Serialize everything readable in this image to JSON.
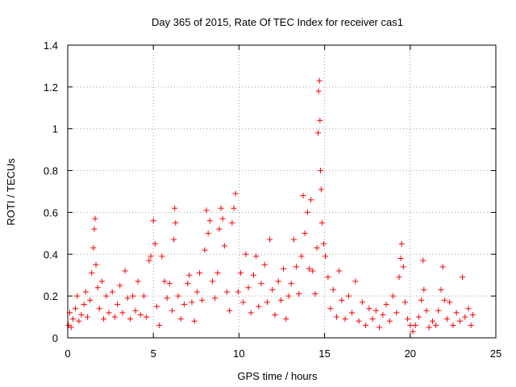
{
  "chart_data": {
    "type": "scatter",
    "title": "Day 365 of 2015, Rate Of TEC Index for receiver cas1",
    "xlabel": "GPS time / hours",
    "ylabel": "ROTI / TECUs",
    "xlim": [
      0,
      25
    ],
    "ylim": [
      0,
      1.4
    ],
    "xticks": [
      0,
      5,
      10,
      15,
      20,
      25
    ],
    "yticks": [
      0,
      0.2,
      0.4,
      0.6,
      0.8,
      1,
      1.2,
      1.4
    ],
    "xtick_labels": [
      "0",
      "5",
      "10",
      "15",
      "20",
      "25"
    ],
    "ytick_labels": [
      "0",
      "0.2",
      "0.4",
      "0.6",
      "0.8",
      "1",
      "1.2",
      "1.4"
    ],
    "grid": true,
    "marker": "+",
    "color": "#ff0000",
    "series": [
      {
        "name": "ROTI",
        "points": [
          [
            0.05,
            0.06
          ],
          [
            0.12,
            0.12
          ],
          [
            0.2,
            0.05
          ],
          [
            0.3,
            0.09
          ],
          [
            0.45,
            0.14
          ],
          [
            0.55,
            0.2
          ],
          [
            0.65,
            0.08
          ],
          [
            0.8,
            0.11
          ],
          [
            0.95,
            0.16
          ],
          [
            1.05,
            0.22
          ],
          [
            1.15,
            0.1
          ],
          [
            1.3,
            0.18
          ],
          [
            1.4,
            0.31
          ],
          [
            1.5,
            0.43
          ],
          [
            1.55,
            0.52
          ],
          [
            1.6,
            0.57
          ],
          [
            1.65,
            0.35
          ],
          [
            1.75,
            0.24
          ],
          [
            1.85,
            0.14
          ],
          [
            2.0,
            0.27
          ],
          [
            2.1,
            0.09
          ],
          [
            2.25,
            0.2
          ],
          [
            2.4,
            0.12
          ],
          [
            2.6,
            0.22
          ],
          [
            2.75,
            0.1
          ],
          [
            2.9,
            0.16
          ],
          [
            3.05,
            0.25
          ],
          [
            3.2,
            0.12
          ],
          [
            3.35,
            0.32
          ],
          [
            3.5,
            0.19
          ],
          [
            3.65,
            0.09
          ],
          [
            3.8,
            0.2
          ],
          [
            3.95,
            0.13
          ],
          [
            4.1,
            0.27
          ],
          [
            4.25,
            0.11
          ],
          [
            4.45,
            0.2
          ],
          [
            4.6,
            0.1
          ],
          [
            4.75,
            0.37
          ],
          [
            4.85,
            0.39
          ],
          [
            5.0,
            0.56
          ],
          [
            5.1,
            0.45
          ],
          [
            5.2,
            0.15
          ],
          [
            5.35,
            0.06
          ],
          [
            5.5,
            0.39
          ],
          [
            5.65,
            0.27
          ],
          [
            5.8,
            0.19
          ],
          [
            5.95,
            0.26
          ],
          [
            6.1,
            0.13
          ],
          [
            6.2,
            0.47
          ],
          [
            6.25,
            0.62
          ],
          [
            6.3,
            0.55
          ],
          [
            6.45,
            0.2
          ],
          [
            6.6,
            0.09
          ],
          [
            6.8,
            0.16
          ],
          [
            7.0,
            0.26
          ],
          [
            7.1,
            0.3
          ],
          [
            7.25,
            0.17
          ],
          [
            7.4,
            0.08
          ],
          [
            7.55,
            0.22
          ],
          [
            7.7,
            0.31
          ],
          [
            7.85,
            0.18
          ],
          [
            8.0,
            0.42
          ],
          [
            8.1,
            0.61
          ],
          [
            8.2,
            0.5
          ],
          [
            8.3,
            0.56
          ],
          [
            8.45,
            0.27
          ],
          [
            8.6,
            0.19
          ],
          [
            8.75,
            0.31
          ],
          [
            8.85,
            0.52
          ],
          [
            8.95,
            0.62
          ],
          [
            9.05,
            0.57
          ],
          [
            9.15,
            0.44
          ],
          [
            9.3,
            0.22
          ],
          [
            9.45,
            0.13
          ],
          [
            9.6,
            0.55
          ],
          [
            9.7,
            0.62
          ],
          [
            9.8,
            0.69
          ],
          [
            9.95,
            0.22
          ],
          [
            10.1,
            0.31
          ],
          [
            10.25,
            0.17
          ],
          [
            10.4,
            0.4
          ],
          [
            10.55,
            0.24
          ],
          [
            10.7,
            0.12
          ],
          [
            10.85,
            0.3
          ],
          [
            11.0,
            0.39
          ],
          [
            11.15,
            0.15
          ],
          [
            11.3,
            0.26
          ],
          [
            11.5,
            0.35
          ],
          [
            11.65,
            0.17
          ],
          [
            11.8,
            0.47
          ],
          [
            11.95,
            0.23
          ],
          [
            12.1,
            0.11
          ],
          [
            12.3,
            0.27
          ],
          [
            12.45,
            0.18
          ],
          [
            12.6,
            0.33
          ],
          [
            12.75,
            0.09
          ],
          [
            12.9,
            0.2
          ],
          [
            13.05,
            0.26
          ],
          [
            13.2,
            0.47
          ],
          [
            13.35,
            0.34
          ],
          [
            13.5,
            0.21
          ],
          [
            13.65,
            0.39
          ],
          [
            13.75,
            0.68
          ],
          [
            13.85,
            0.5
          ],
          [
            14.0,
            0.6
          ],
          [
            14.1,
            0.33
          ],
          [
            14.2,
            0.66
          ],
          [
            14.3,
            0.32
          ],
          [
            14.45,
            0.21
          ],
          [
            14.55,
            0.43
          ],
          [
            14.62,
            0.98
          ],
          [
            14.65,
            1.18
          ],
          [
            14.7,
            1.23
          ],
          [
            14.73,
            1.04
          ],
          [
            14.76,
            0.8
          ],
          [
            14.8,
            0.71
          ],
          [
            14.85,
            0.55
          ],
          [
            14.95,
            0.45
          ],
          [
            15.05,
            0.39
          ],
          [
            15.2,
            0.29
          ],
          [
            15.35,
            0.14
          ],
          [
            15.5,
            0.23
          ],
          [
            15.7,
            0.1
          ],
          [
            15.85,
            0.32
          ],
          [
            16.0,
            0.18
          ],
          [
            16.2,
            0.09
          ],
          [
            16.4,
            0.2
          ],
          [
            16.6,
            0.12
          ],
          [
            16.8,
            0.27
          ],
          [
            17.0,
            0.08
          ],
          [
            17.2,
            0.17
          ],
          [
            17.4,
            0.06
          ],
          [
            17.6,
            0.14
          ],
          [
            17.8,
            0.09
          ],
          [
            18.0,
            0.13
          ],
          [
            18.2,
            0.05
          ],
          [
            18.4,
            0.11
          ],
          [
            18.6,
            0.16
          ],
          [
            18.8,
            0.08
          ],
          [
            19.0,
            0.2
          ],
          [
            19.2,
            0.12
          ],
          [
            19.35,
            0.29
          ],
          [
            19.45,
            0.38
          ],
          [
            19.5,
            0.45
          ],
          [
            19.6,
            0.34
          ],
          [
            19.7,
            0.17
          ],
          [
            19.85,
            0.09
          ],
          [
            20.0,
            0.06
          ],
          [
            20.15,
            0.03
          ],
          [
            20.3,
            0.06
          ],
          [
            20.5,
            0.1
          ],
          [
            20.65,
            0.18
          ],
          [
            20.75,
            0.37
          ],
          [
            20.8,
            0.23
          ],
          [
            20.95,
            0.13
          ],
          [
            21.1,
            0.05
          ],
          [
            21.3,
            0.08
          ],
          [
            21.5,
            0.06
          ],
          [
            21.65,
            0.13
          ],
          [
            21.8,
            0.23
          ],
          [
            21.9,
            0.34
          ],
          [
            22.0,
            0.18
          ],
          [
            22.15,
            0.09
          ],
          [
            22.3,
            0.17
          ],
          [
            22.5,
            0.06
          ],
          [
            22.7,
            0.12
          ],
          [
            22.9,
            0.08
          ],
          [
            23.05,
            0.29
          ],
          [
            23.2,
            0.1
          ],
          [
            23.4,
            0.14
          ],
          [
            23.55,
            0.06
          ],
          [
            23.65,
            0.11
          ]
        ]
      }
    ]
  }
}
